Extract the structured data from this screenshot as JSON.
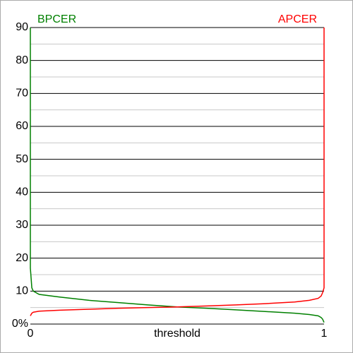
{
  "chart_data": {
    "type": "line",
    "xlabel": "threshold",
    "x": [
      0,
      0,
      0.005,
      0.01,
      0.03,
      0.1,
      0.2,
      0.3,
      0.4,
      0.5,
      0.6,
      0.7,
      0.8,
      0.9,
      0.95,
      0.98,
      0.99,
      0.995,
      1,
      1
    ],
    "series": [
      {
        "name": "BPCER",
        "color": "#008000",
        "values": [
          90,
          17,
          11,
          10,
          9,
          8.2,
          7.2,
          6.5,
          5.8,
          5.2,
          4.8,
          4.3,
          3.8,
          3.3,
          2.9,
          2.5,
          2,
          1.5,
          0.5,
          null
        ]
      },
      {
        "name": "APCER",
        "color": "#ff0000",
        "values": [
          null,
          2.5,
          3.3,
          3.6,
          3.9,
          4.2,
          4.5,
          4.8,
          5,
          5.2,
          5.5,
          5.8,
          6.2,
          6.7,
          7.2,
          7.8,
          8.5,
          9.5,
          11,
          90
        ]
      }
    ],
    "xlim": [
      0,
      1
    ],
    "xticks": [
      0,
      1
    ],
    "ylim": [
      0,
      90
    ],
    "yticks": [
      {
        "value": 0,
        "label": "0%"
      },
      10,
      20,
      30,
      40,
      50,
      60,
      70,
      80,
      90
    ],
    "minor_yticks": [
      5,
      15,
      25,
      35,
      45,
      55,
      65,
      75,
      85
    ],
    "grid": true
  }
}
